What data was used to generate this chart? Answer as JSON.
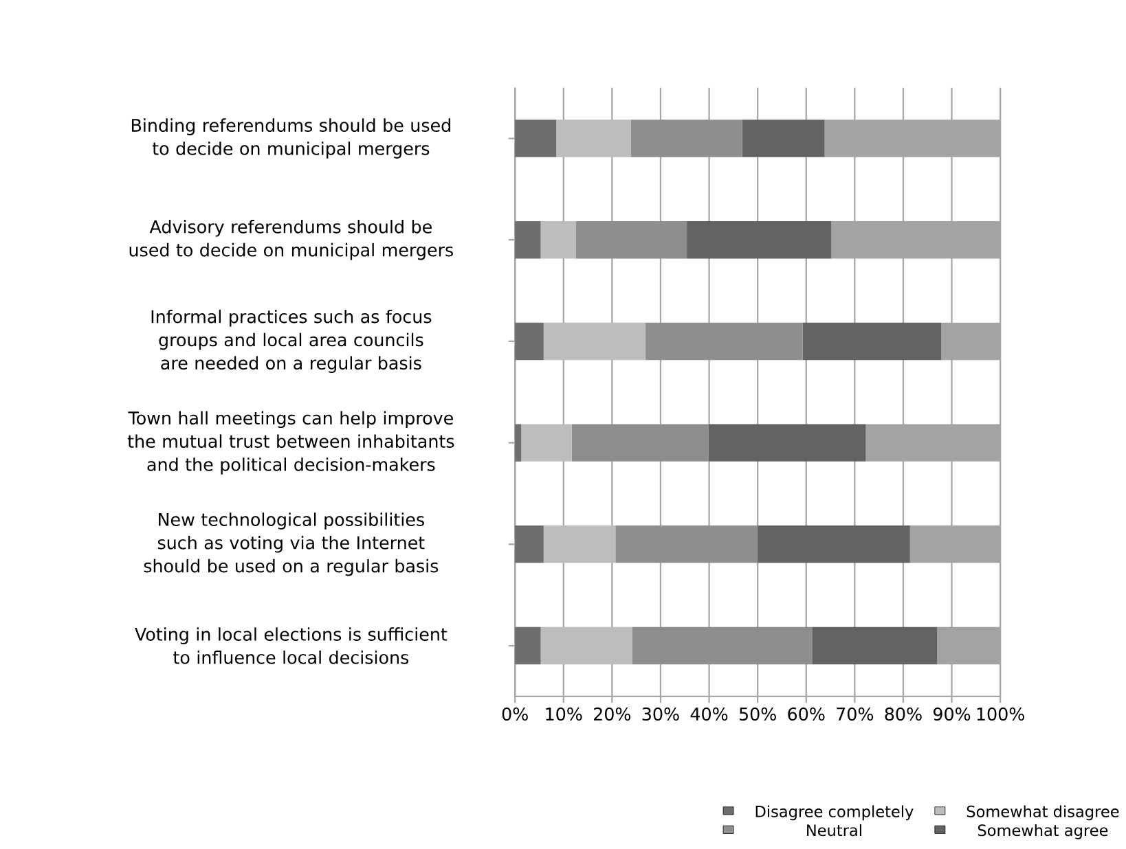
{
  "chart_data": {
    "type": "bar",
    "orientation": "horizontal",
    "stacked": true,
    "categories": [
      "Binding referendums should be used to decide on municipal mergers",
      "Advisory referendums should be used to decide on municipal mergers",
      "Informal practices such as focus groups and local area councils are needed on a regular basis",
      "Town hall meetings can help improve the mutual trust between inhabitants and the political decision-makers",
      "New technological possibilities such as voting via the Internet should be used on a regular basis",
      "Voting in local elections is sufficient to influence local decisions"
    ],
    "series": [
      {
        "name": "Disagree completely",
        "color": "#6e6e6e",
        "values": [
          8.5,
          5.3,
          5.9,
          1.3,
          5.9,
          5.3
        ]
      },
      {
        "name": "Somewhat disagree",
        "color": "#bdbdbd",
        "values": [
          15.4,
          7.2,
          21.0,
          10.4,
          14.8,
          18.9
        ]
      },
      {
        "name": "Neutral",
        "color": "#8e8e8e",
        "values": [
          22.9,
          22.9,
          32.4,
          28.2,
          29.3,
          37.0
        ]
      },
      {
        "name": "Somewhat agree",
        "color": "#636363",
        "values": [
          17.0,
          29.8,
          28.5,
          32.4,
          31.4,
          25.8
        ]
      },
      {
        "color": "#a3a3a3",
        "values": [
          36.2,
          34.8,
          12.2,
          27.7,
          18.6,
          13.0
        ]
      }
    ],
    "xlim": [
      0,
      100
    ],
    "xticks": [
      {
        "value": 0,
        "label": "0%"
      },
      {
        "value": 10,
        "label": "10%"
      },
      {
        "value": 20,
        "label": "20%"
      },
      {
        "value": 30,
        "label": "30%"
      },
      {
        "value": 40,
        "label": "40%"
      },
      {
        "value": 50,
        "label": "50%"
      },
      {
        "value": 60,
        "label": "60%"
      },
      {
        "value": 70,
        "label": "70%"
      },
      {
        "value": 80,
        "label": "80%"
      },
      {
        "value": 90,
        "label": "90%"
      },
      {
        "value": 100,
        "label": "100%"
      }
    ],
    "grid": "x",
    "legend": "bottom"
  }
}
